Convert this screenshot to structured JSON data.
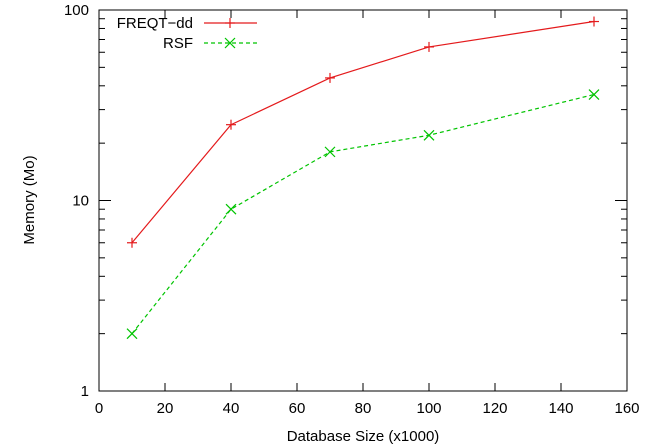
{
  "chart_data": {
    "type": "line",
    "title": "",
    "xlabel": "Database Size (x1000)",
    "ylabel": "Memory (Mo)",
    "xlim": [
      0,
      160
    ],
    "ylim": [
      1,
      100
    ],
    "y_scale": "log",
    "x_ticks": [
      "0",
      "20",
      "40",
      "60",
      "80",
      "100",
      "120",
      "140",
      "160"
    ],
    "y_ticks": [
      "1",
      "10",
      "100"
    ],
    "grid": false,
    "legend_position": "top-left",
    "series": [
      {
        "name": "FREQT−dd",
        "color": "#e41a1c",
        "marker": "plus",
        "line_style": "solid",
        "x": [
          10,
          40,
          70,
          100,
          150
        ],
        "y": [
          6,
          25,
          44,
          64,
          87
        ]
      },
      {
        "name": "RSF",
        "color": "#00c400",
        "marker": "cross",
        "line_style": "dashed",
        "x": [
          10,
          40,
          70,
          100,
          150
        ],
        "y": [
          2,
          9,
          18,
          22,
          36
        ]
      }
    ]
  }
}
